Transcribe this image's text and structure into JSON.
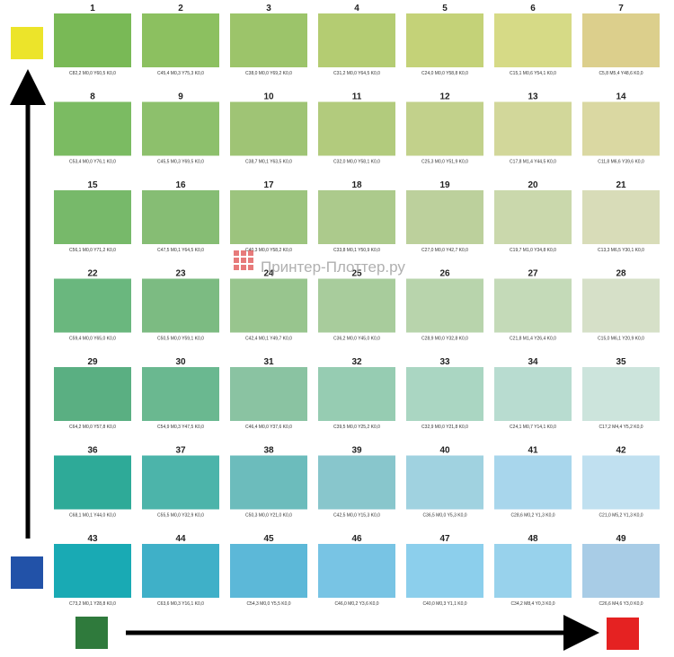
{
  "swatches": [
    {
      "number": "1",
      "label": "C82,2 M0,0 Y60,5 K0,0",
      "color": "#79b956"
    },
    {
      "number": "2",
      "label": "C45,4 M0,3 Y75,3 K0,0",
      "color": "#8cc060"
    },
    {
      "number": "3",
      "label": "C38,0 M0,0 Y69,2 K0,0",
      "color": "#9cc46a"
    },
    {
      "number": "4",
      "label": "C31,2 M0,0 Y64,5 K0,0",
      "color": "#b4cc72"
    },
    {
      "number": "5",
      "label": "C24,0 M0,0 Y58,8 K0,0",
      "color": "#c4d278"
    },
    {
      "number": "6",
      "label": "C15,1 M0,6 Y54,1 K0,0",
      "color": "#d6da86"
    },
    {
      "number": "7",
      "label": "C5,8 M5,4 Y48,6 K0,0",
      "color": "#dccf8c"
    },
    {
      "number": "8",
      "label": "C53,4 M0,0 Y76,1 K0,0",
      "color": "#7bbb62"
    },
    {
      "number": "9",
      "label": "C45,5 M0,3 Y69,5 K0,0",
      "color": "#8dc06c"
    },
    {
      "number": "10",
      "label": "C38,7 M0,1 Y63,5 K0,0",
      "color": "#9fc475"
    },
    {
      "number": "11",
      "label": "C32,0 M0,0 Y58,1 K0,0",
      "color": "#b2cb7d"
    },
    {
      "number": "12",
      "label": "C25,3 M0,0 Y51,9 K0,0",
      "color": "#c2d18b"
    },
    {
      "number": "13",
      "label": "C17,8 M1,4 Y44,5 K0,0",
      "color": "#d2d79a"
    },
    {
      "number": "14",
      "label": "C11,8 M6,6 Y39,6 K0,0",
      "color": "#dad8a2"
    },
    {
      "number": "15",
      "label": "C56,1 M0,0 Y71,2 K0,0",
      "color": "#77b96a"
    },
    {
      "number": "16",
      "label": "C47,5 M0,1 Y64,5 K0,0",
      "color": "#86bd74"
    },
    {
      "number": "17",
      "label": "C40,3 M0,0 Y58,2 K0,0",
      "color": "#9cc47e"
    },
    {
      "number": "18",
      "label": "C33,8 M0,1 Y50,9 K0,0",
      "color": "#acca8c"
    },
    {
      "number": "19",
      "label": "C27,0 M0,0 Y42,7 K0,0",
      "color": "#bcd09c"
    },
    {
      "number": "20",
      "label": "C19,7 M1,0 Y34,8 K0,0",
      "color": "#cad8ac"
    },
    {
      "number": "21",
      "label": "C13,3 M6,5 Y30,1 K0,0",
      "color": "#d8dcb8"
    },
    {
      "number": "22",
      "label": "C59,4 M0,0 Y65,0 K0,0",
      "color": "#6ab77e"
    },
    {
      "number": "23",
      "label": "C50,5 M0,0 Y59,1 K0,0",
      "color": "#7cbb82"
    },
    {
      "number": "24",
      "label": "C42,4 M0,1 Y49,7 K0,0",
      "color": "#98c58e"
    },
    {
      "number": "25",
      "label": "C36,2 M0,0 Y45,0 K0,0",
      "color": "#a8cc9c"
    },
    {
      "number": "26",
      "label": "C28,9 M0,0 Y32,8 K0,0",
      "color": "#b8d4ac"
    },
    {
      "number": "27",
      "label": "C21,8 M1,4 Y26,4 K0,0",
      "color": "#c4dab8"
    },
    {
      "number": "28",
      "label": "C15,0 M6,1 Y20,9 K0,0",
      "color": "#d6e0c8"
    },
    {
      "number": "29",
      "label": "C64,2 M0,0 Y57,8 K0,0",
      "color": "#5aaf82"
    },
    {
      "number": "30",
      "label": "C54,9 M0,3 Y47,5 K0,0",
      "color": "#6ab890"
    },
    {
      "number": "31",
      "label": "C46,4 M0,0 Y37,6 K0,0",
      "color": "#8ac3a2"
    },
    {
      "number": "32",
      "label": "C39,5 M0,0 Y25,2 K0,0",
      "color": "#96ccb2"
    },
    {
      "number": "33",
      "label": "C32,9 M0,0 Y21,8 K0,0",
      "color": "#aad6c2"
    },
    {
      "number": "34",
      "label": "C24,1 M0,7 Y14,1 K0,0",
      "color": "#b8dcd0"
    },
    {
      "number": "35",
      "label": "C17,2 M4,4 Y5,2 K0,0",
      "color": "#cce4dc"
    },
    {
      "number": "36",
      "label": "C68,1 M0,1 Y44,0 K0,0",
      "color": "#2eaa98"
    },
    {
      "number": "37",
      "label": "C55,5 M0,0 Y32,9 K0,0",
      "color": "#4cb4aa"
    },
    {
      "number": "38",
      "label": "C50,3 M0,0 Y21,0 K0,0",
      "color": "#6cbcbc"
    },
    {
      "number": "39",
      "label": "C42,5 M0,0 Y15,3 K0,0",
      "color": "#88c6cc"
    },
    {
      "number": "40",
      "label": "C36,5 M0,0 Y5,3 K0,0",
      "color": "#a0d2e0"
    },
    {
      "number": "41",
      "label": "C28,6 M0,2 Y1,3 K0,0",
      "color": "#a8d6ec"
    },
    {
      "number": "42",
      "label": "C21,0 M5,2 Y1,3 K0,0",
      "color": "#c0e0f0"
    },
    {
      "number": "43",
      "label": "C73,2 M0,1 Y28,8 K0,0",
      "color": "#19aab4"
    },
    {
      "number": "44",
      "label": "C63,6 M0,3 Y16,1 K0,0",
      "color": "#3fb0c8"
    },
    {
      "number": "45",
      "label": "C54,3 M0,0 Y5,5 K0,0",
      "color": "#5cb8d8"
    },
    {
      "number": "46",
      "label": "C46,0 M0,2 Y3,6 K0,0",
      "color": "#78c4e4"
    },
    {
      "number": "47",
      "label": "C40,0 M0,3 Y1,1 K0,0",
      "color": "#8ccfec"
    },
    {
      "number": "48",
      "label": "C34,2 M8,4 Y0,3 K0,0",
      "color": "#98d2ec"
    },
    {
      "number": "49",
      "label": "C26,6 M4,6 Y3,0 K0,0",
      "color": "#a8cce6"
    }
  ],
  "watermark": "Принтер-Плоттер.ру"
}
